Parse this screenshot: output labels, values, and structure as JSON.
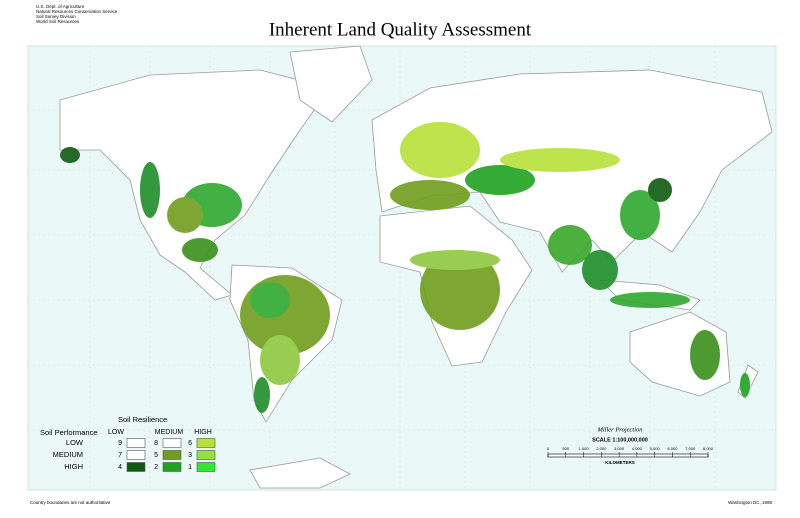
{
  "header": {
    "title": "Inherent Land Quality Assessment",
    "agency": [
      "U.S. Dept. of Agriculture",
      "Natural Resources Conservation Service",
      "Soil Survey Division",
      "World Soil Resources"
    ]
  },
  "legend": {
    "resilience_title": "Soil Resilience",
    "performance_title": "Soil Performance",
    "columns": [
      "LOW",
      "MEDIUM",
      "HIGH"
    ],
    "rows": [
      {
        "label": "LOW",
        "cells": [
          {
            "class": "9",
            "color": "#ffffff"
          },
          {
            "class": "8",
            "color": "#ffffff"
          },
          {
            "class": "6",
            "color": "#b8e03a"
          }
        ]
      },
      {
        "label": "MEDIUM",
        "cells": [
          {
            "class": "7",
            "color": "#ffffff"
          },
          {
            "class": "5",
            "color": "#6f9e1c"
          },
          {
            "class": "3",
            "color": "#8fe33f"
          }
        ]
      },
      {
        "label": "HIGH",
        "cells": [
          {
            "class": "4",
            "color": "#0f5a10"
          },
          {
            "class": "2",
            "color": "#1fa31f"
          },
          {
            "class": "1",
            "color": "#2fe82f"
          }
        ]
      }
    ]
  },
  "scale": {
    "projection": "Miller Projection",
    "ratio": "SCALE 1:100,000,000",
    "ticks": [
      "0",
      "500",
      "1,000",
      "2,000",
      "3,000",
      "4,000",
      "5,000",
      "6,000",
      "7,000",
      "8,000"
    ],
    "unit": "KILOMETERS"
  },
  "footer": {
    "note": "Country boundaries are not authoritative",
    "place": "Washington DC, 1998"
  }
}
